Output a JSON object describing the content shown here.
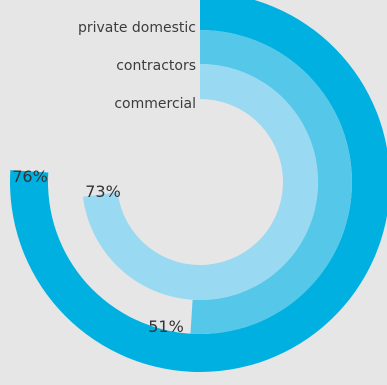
{
  "chart_data": {
    "type": "radial-bar",
    "title": "",
    "series": [
      {
        "name": "private domestic",
        "value": 76,
        "value_label": "76%",
        "color": "#00b0e0"
      },
      {
        "name": "contractors",
        "value": 51,
        "value_label": "51%",
        "color": "#55c8ea"
      },
      {
        "name": "commercial",
        "value": 73,
        "value_label": "73%",
        "color": "#9ad9f2"
      }
    ],
    "max": 100,
    "start": "top",
    "direction": "clockwise"
  }
}
